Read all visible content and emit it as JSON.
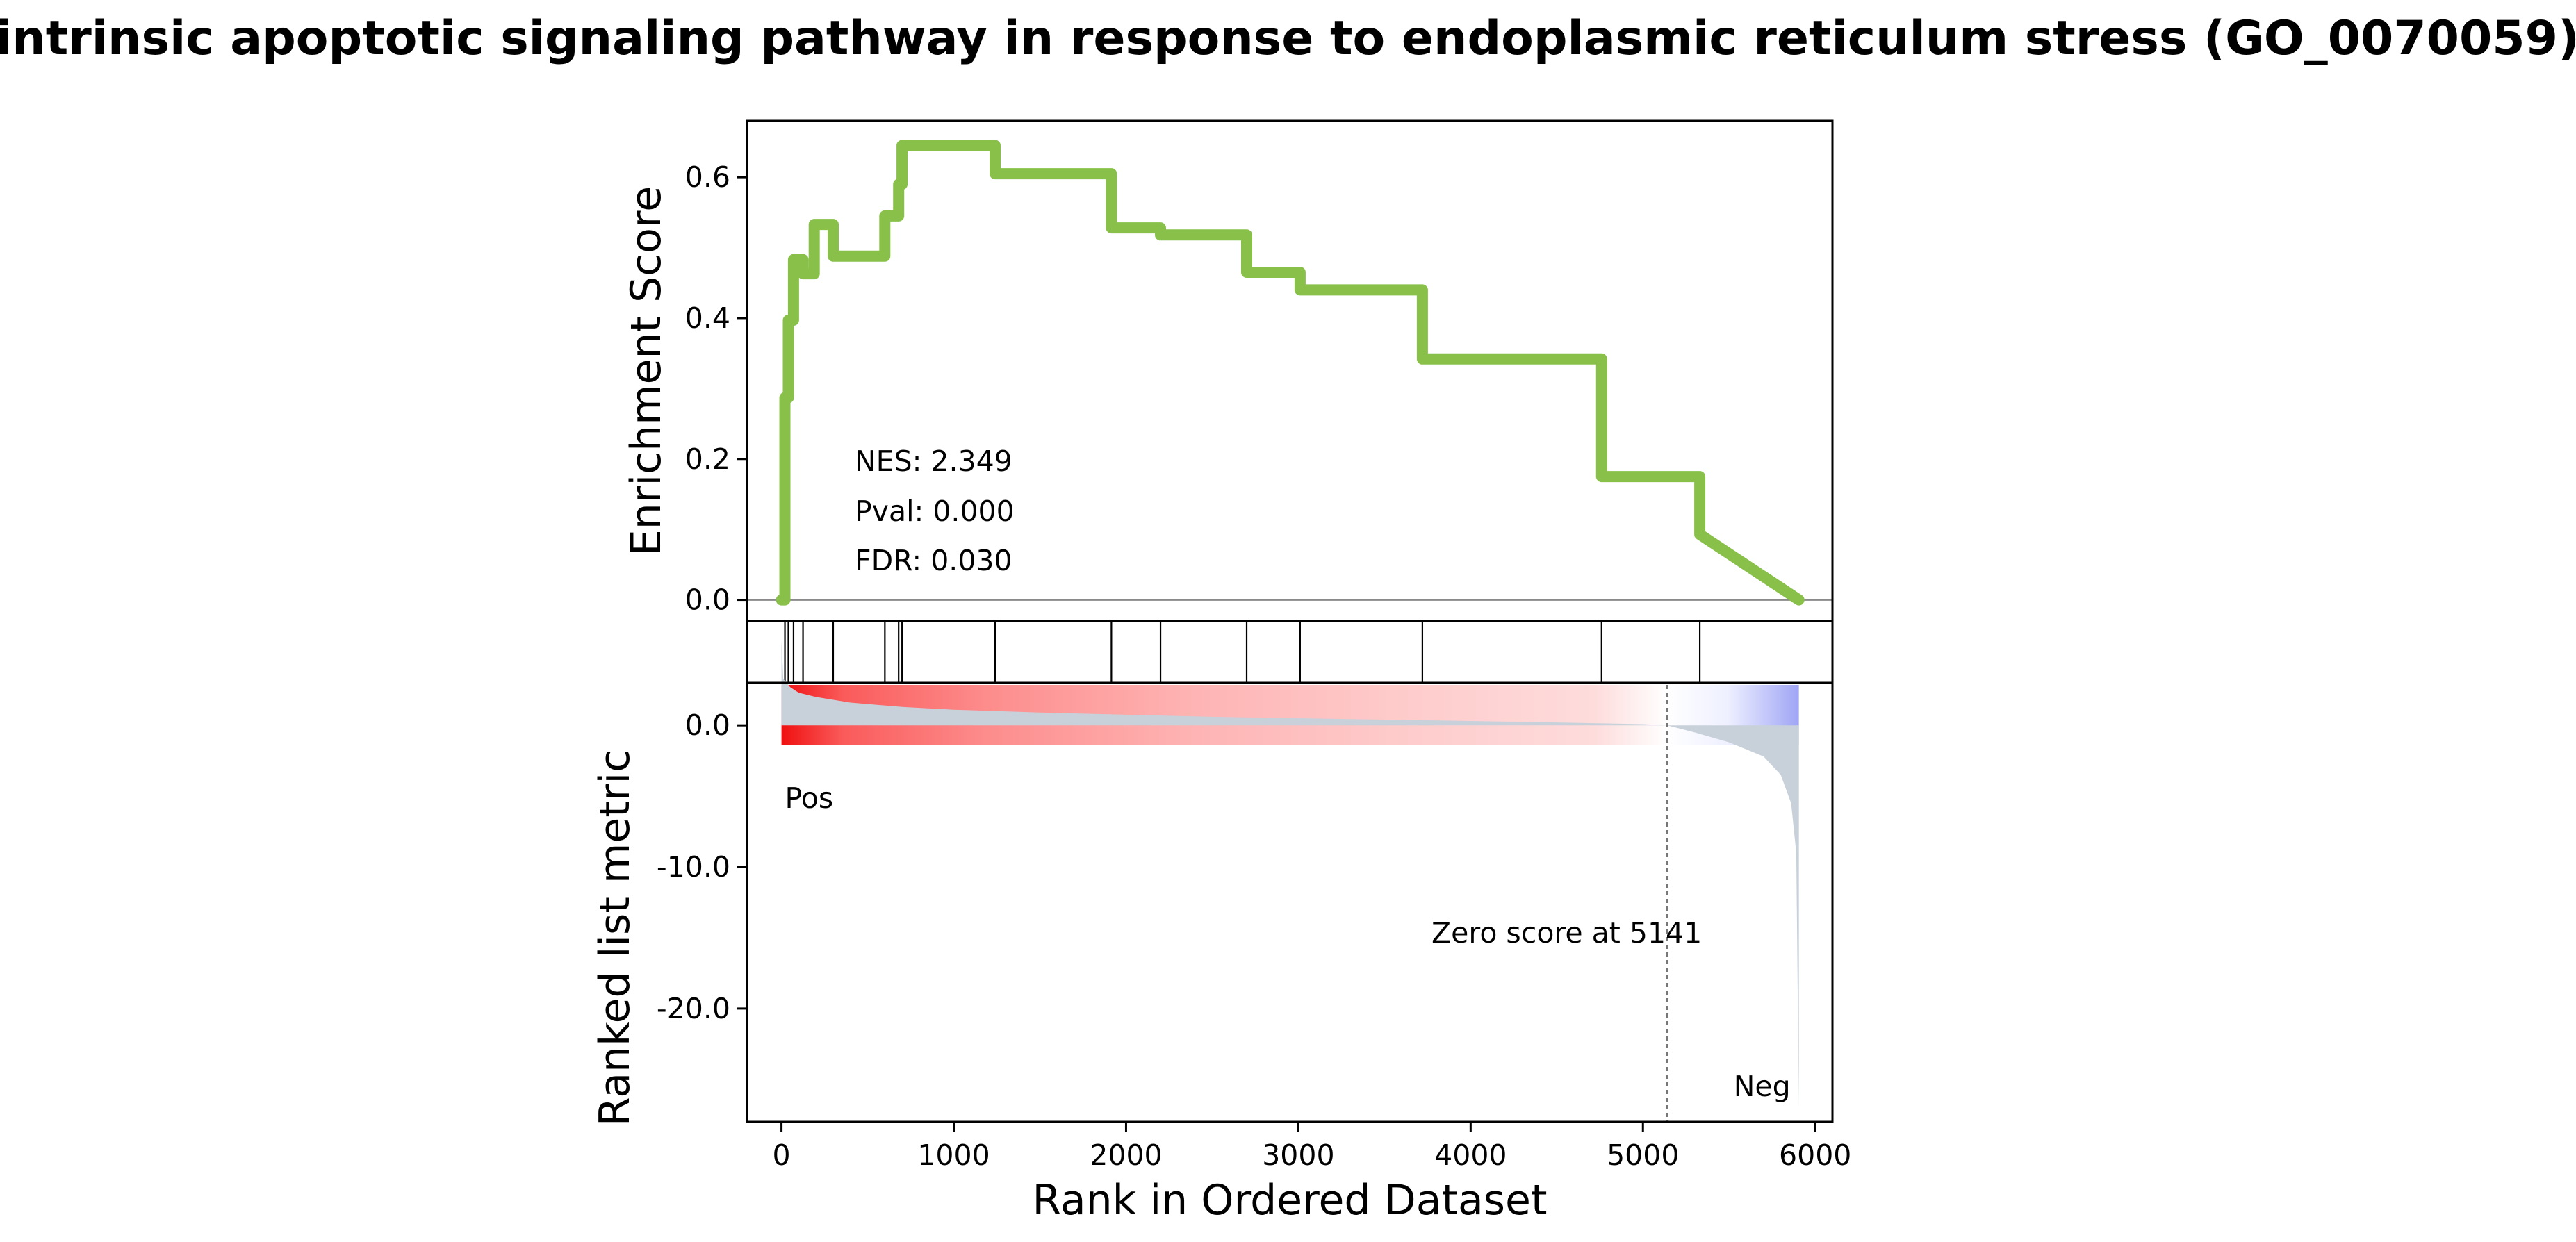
{
  "chart_data": {
    "type": "line",
    "title": "intrinsic apoptotic signaling pathway in response to endoplasmic reticulum stress (GO_0070059)",
    "xlabel": "Rank in Ordered Dataset",
    "xlim": [
      -200,
      6100
    ],
    "x_ticks": [
      0,
      1000,
      2000,
      3000,
      4000,
      5000,
      6000
    ],
    "x_tick_labels": [
      "0",
      "1000",
      "2000",
      "3000",
      "4000",
      "5000",
      "6000"
    ],
    "enrichment": {
      "ylabel": "Enrichment Score",
      "ylim": [
        -0.03,
        0.68
      ],
      "y_ticks": [
        0.0,
        0.2,
        0.4,
        0.6
      ],
      "y_tick_labels": [
        "0.0",
        "0.2",
        "0.4",
        "0.6"
      ],
      "line_color": "#88c04a",
      "x": [
        0,
        20,
        20,
        40,
        40,
        70,
        70,
        125,
        125,
        190,
        190,
        300,
        300,
        600,
        600,
        680,
        680,
        700,
        700,
        1240,
        1240,
        1915,
        1915,
        2200,
        2200,
        2700,
        2700,
        3010,
        3010,
        3720,
        3720,
        4760,
        4760,
        5330,
        5330,
        5905
      ],
      "y": [
        0.0,
        0.0,
        0.287,
        0.287,
        0.397,
        0.397,
        0.483,
        0.483,
        0.463,
        0.463,
        0.533,
        0.533,
        0.488,
        0.488,
        0.545,
        0.545,
        0.59,
        0.59,
        0.645,
        0.645,
        0.605,
        0.605,
        0.528,
        0.528,
        0.518,
        0.518,
        0.465,
        0.465,
        0.44,
        0.44,
        0.342,
        0.342,
        0.175,
        0.175,
        0.093,
        0.0
      ],
      "annotations": [
        "NES: 2.349",
        "Pval: 0.000",
        "FDR: 0.030"
      ]
    },
    "hits": [
      20,
      40,
      70,
      125,
      300,
      600,
      680,
      700,
      1240,
      1915,
      2200,
      2700,
      3010,
      3720,
      4760,
      5330
    ],
    "ranked_metric": {
      "ylabel": "Ranked list metric",
      "ylim": [
        -28,
        3
      ],
      "y_ticks": [
        0.0,
        -10.0,
        -20.0
      ],
      "y_tick_labels": [
        "0.0",
        "-10.0",
        "-20.0"
      ],
      "fill_color": "#c8d1da",
      "n_genes": 5905,
      "zero_cross": 5141,
      "pos_label": "Pos",
      "neg_label": "Neg",
      "pos_color": "#e0161a",
      "neg_color": "#1a1ae6",
      "zero_label": "Zero score at 5141",
      "x": [
        0,
        10,
        50,
        100,
        200,
        400,
        700,
        1000,
        1500,
        2000,
        2500,
        3000,
        3500,
        4000,
        4500,
        5000,
        5141,
        5300,
        5500,
        5700,
        5800,
        5860,
        5890,
        5905
      ],
      "values": [
        6.0,
        3.3,
        2.7,
        2.3,
        2.0,
        1.6,
        1.3,
        1.1,
        0.9,
        0.75,
        0.6,
        0.5,
        0.4,
        0.3,
        0.2,
        0.08,
        0.0,
        -0.5,
        -1.2,
        -2.2,
        -3.5,
        -5.5,
        -9.0,
        -27.0
      ]
    }
  }
}
